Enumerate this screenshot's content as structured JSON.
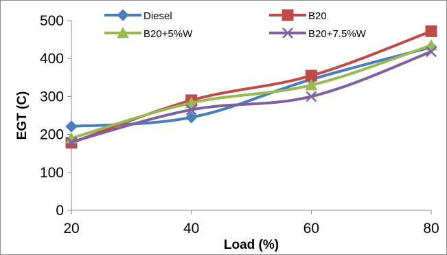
{
  "chart_data": {
    "type": "line",
    "title": "",
    "xlabel": "Load (%)",
    "ylabel": "EGT (C)",
    "categories": [
      "20",
      "40",
      "60",
      "80"
    ],
    "ylim": [
      0,
      500
    ],
    "yticks": [
      "0",
      "100",
      "200",
      "300",
      "400",
      "500"
    ],
    "grid": false,
    "legend_position": "top",
    "series": [
      {
        "name": "Diesel",
        "values": [
          221,
          245,
          345,
          430
        ],
        "color": "#4a7ebb",
        "marker": "diamond"
      },
      {
        "name": "B20",
        "values": [
          178,
          290,
          355,
          472
        ],
        "color": "#be4b48",
        "marker": "square"
      },
      {
        "name": "B20+5%W",
        "values": [
          190,
          283,
          330,
          435
        ],
        "color": "#98b954",
        "marker": "triangle"
      },
      {
        "name": "B20+7.5%W",
        "values": [
          180,
          265,
          300,
          418
        ],
        "color": "#7d60a0",
        "marker": "x"
      }
    ]
  }
}
